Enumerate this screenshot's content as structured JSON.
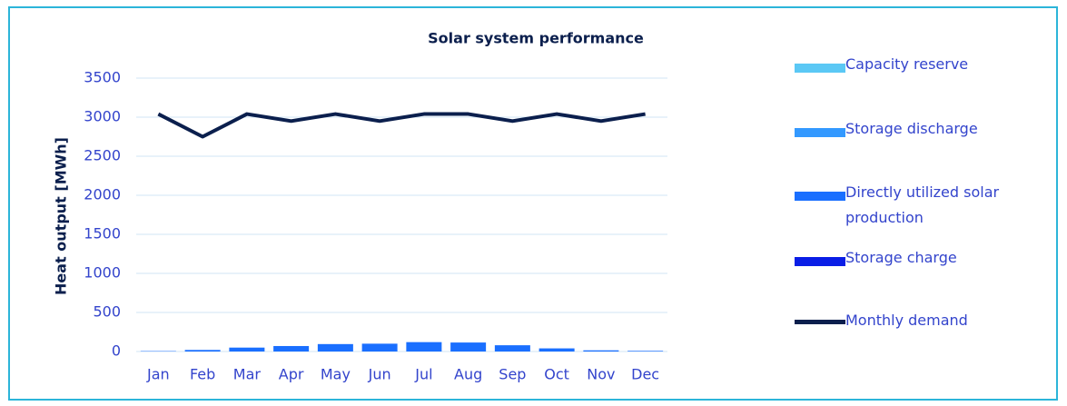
{
  "chart_data": {
    "type": "bar",
    "title": "Solar system performance",
    "y_label": "Heat output [MWh]",
    "categories": [
      "Jan",
      "Feb",
      "Mar",
      "Apr",
      "May",
      "Jun",
      "Jul",
      "Aug",
      "Sep",
      "Oct",
      "Nov",
      "Dec"
    ],
    "series": [
      {
        "name": "Capacity reserve",
        "type": "bar",
        "color": "#5bc8f5",
        "values": [
          0,
          0,
          0,
          0,
          0,
          0,
          0,
          0,
          0,
          0,
          0,
          0
        ]
      },
      {
        "name": "Storage discharge",
        "type": "bar",
        "color": "#3399ff",
        "values": [
          0,
          0,
          0,
          0,
          0,
          0,
          0,
          0,
          0,
          0,
          0,
          0
        ]
      },
      {
        "name": "Directly utilized solar production",
        "type": "bar",
        "color": "#1a6fff",
        "values": [
          5,
          20,
          50,
          70,
          95,
          100,
          120,
          115,
          80,
          40,
          15,
          8
        ]
      },
      {
        "name": "Storage charge",
        "type": "bar",
        "color": "#0a1ee6",
        "values": [
          0,
          0,
          0,
          0,
          0,
          0,
          0,
          0,
          0,
          0,
          0,
          0
        ]
      },
      {
        "name": "Monthly demand",
        "type": "line",
        "color": "#0b1f4d",
        "values": [
          3040,
          2750,
          3040,
          2950,
          3040,
          2950,
          3040,
          3040,
          2950,
          3040,
          2950,
          3040
        ]
      }
    ],
    "ylim": [
      0,
      3500
    ],
    "yticks": [
      0,
      500,
      1000,
      1500,
      2000,
      2500,
      3000,
      3500
    ],
    "grid": true
  }
}
